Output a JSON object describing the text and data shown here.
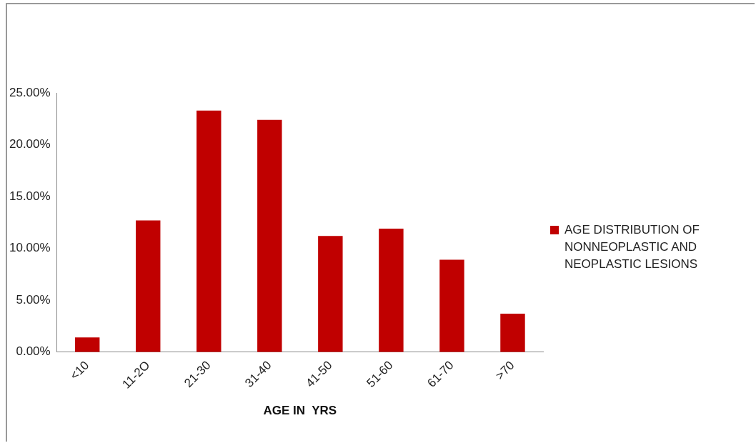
{
  "chart_data": {
    "type": "bar",
    "xlabel": "AGE IN  YRS",
    "categories": [
      "<10",
      "11-2O",
      "21-30",
      "31-40",
      "41-50",
      "51-60",
      "61-70",
      ">70"
    ],
    "series": [
      {
        "name": "AGE DISTRIBUTION OF NONNEOPLASTIC AND NEOPLASTIC LESIONS",
        "color": "#c00000",
        "values": [
          1.4,
          12.7,
          23.3,
          22.4,
          11.2,
          11.9,
          8.9,
          3.7
        ]
      }
    ],
    "ylim": [
      0,
      25
    ],
    "yticks": [
      {
        "value": 0,
        "label": "0.00%"
      },
      {
        "value": 5,
        "label": "5.00%"
      },
      {
        "value": 10,
        "label": "10.00%"
      },
      {
        "value": 15,
        "label": "15.00%"
      },
      {
        "value": 20,
        "label": "20.00%"
      },
      {
        "value": 25,
        "label": "25.00%"
      }
    ],
    "grid": false,
    "legend": "right"
  }
}
